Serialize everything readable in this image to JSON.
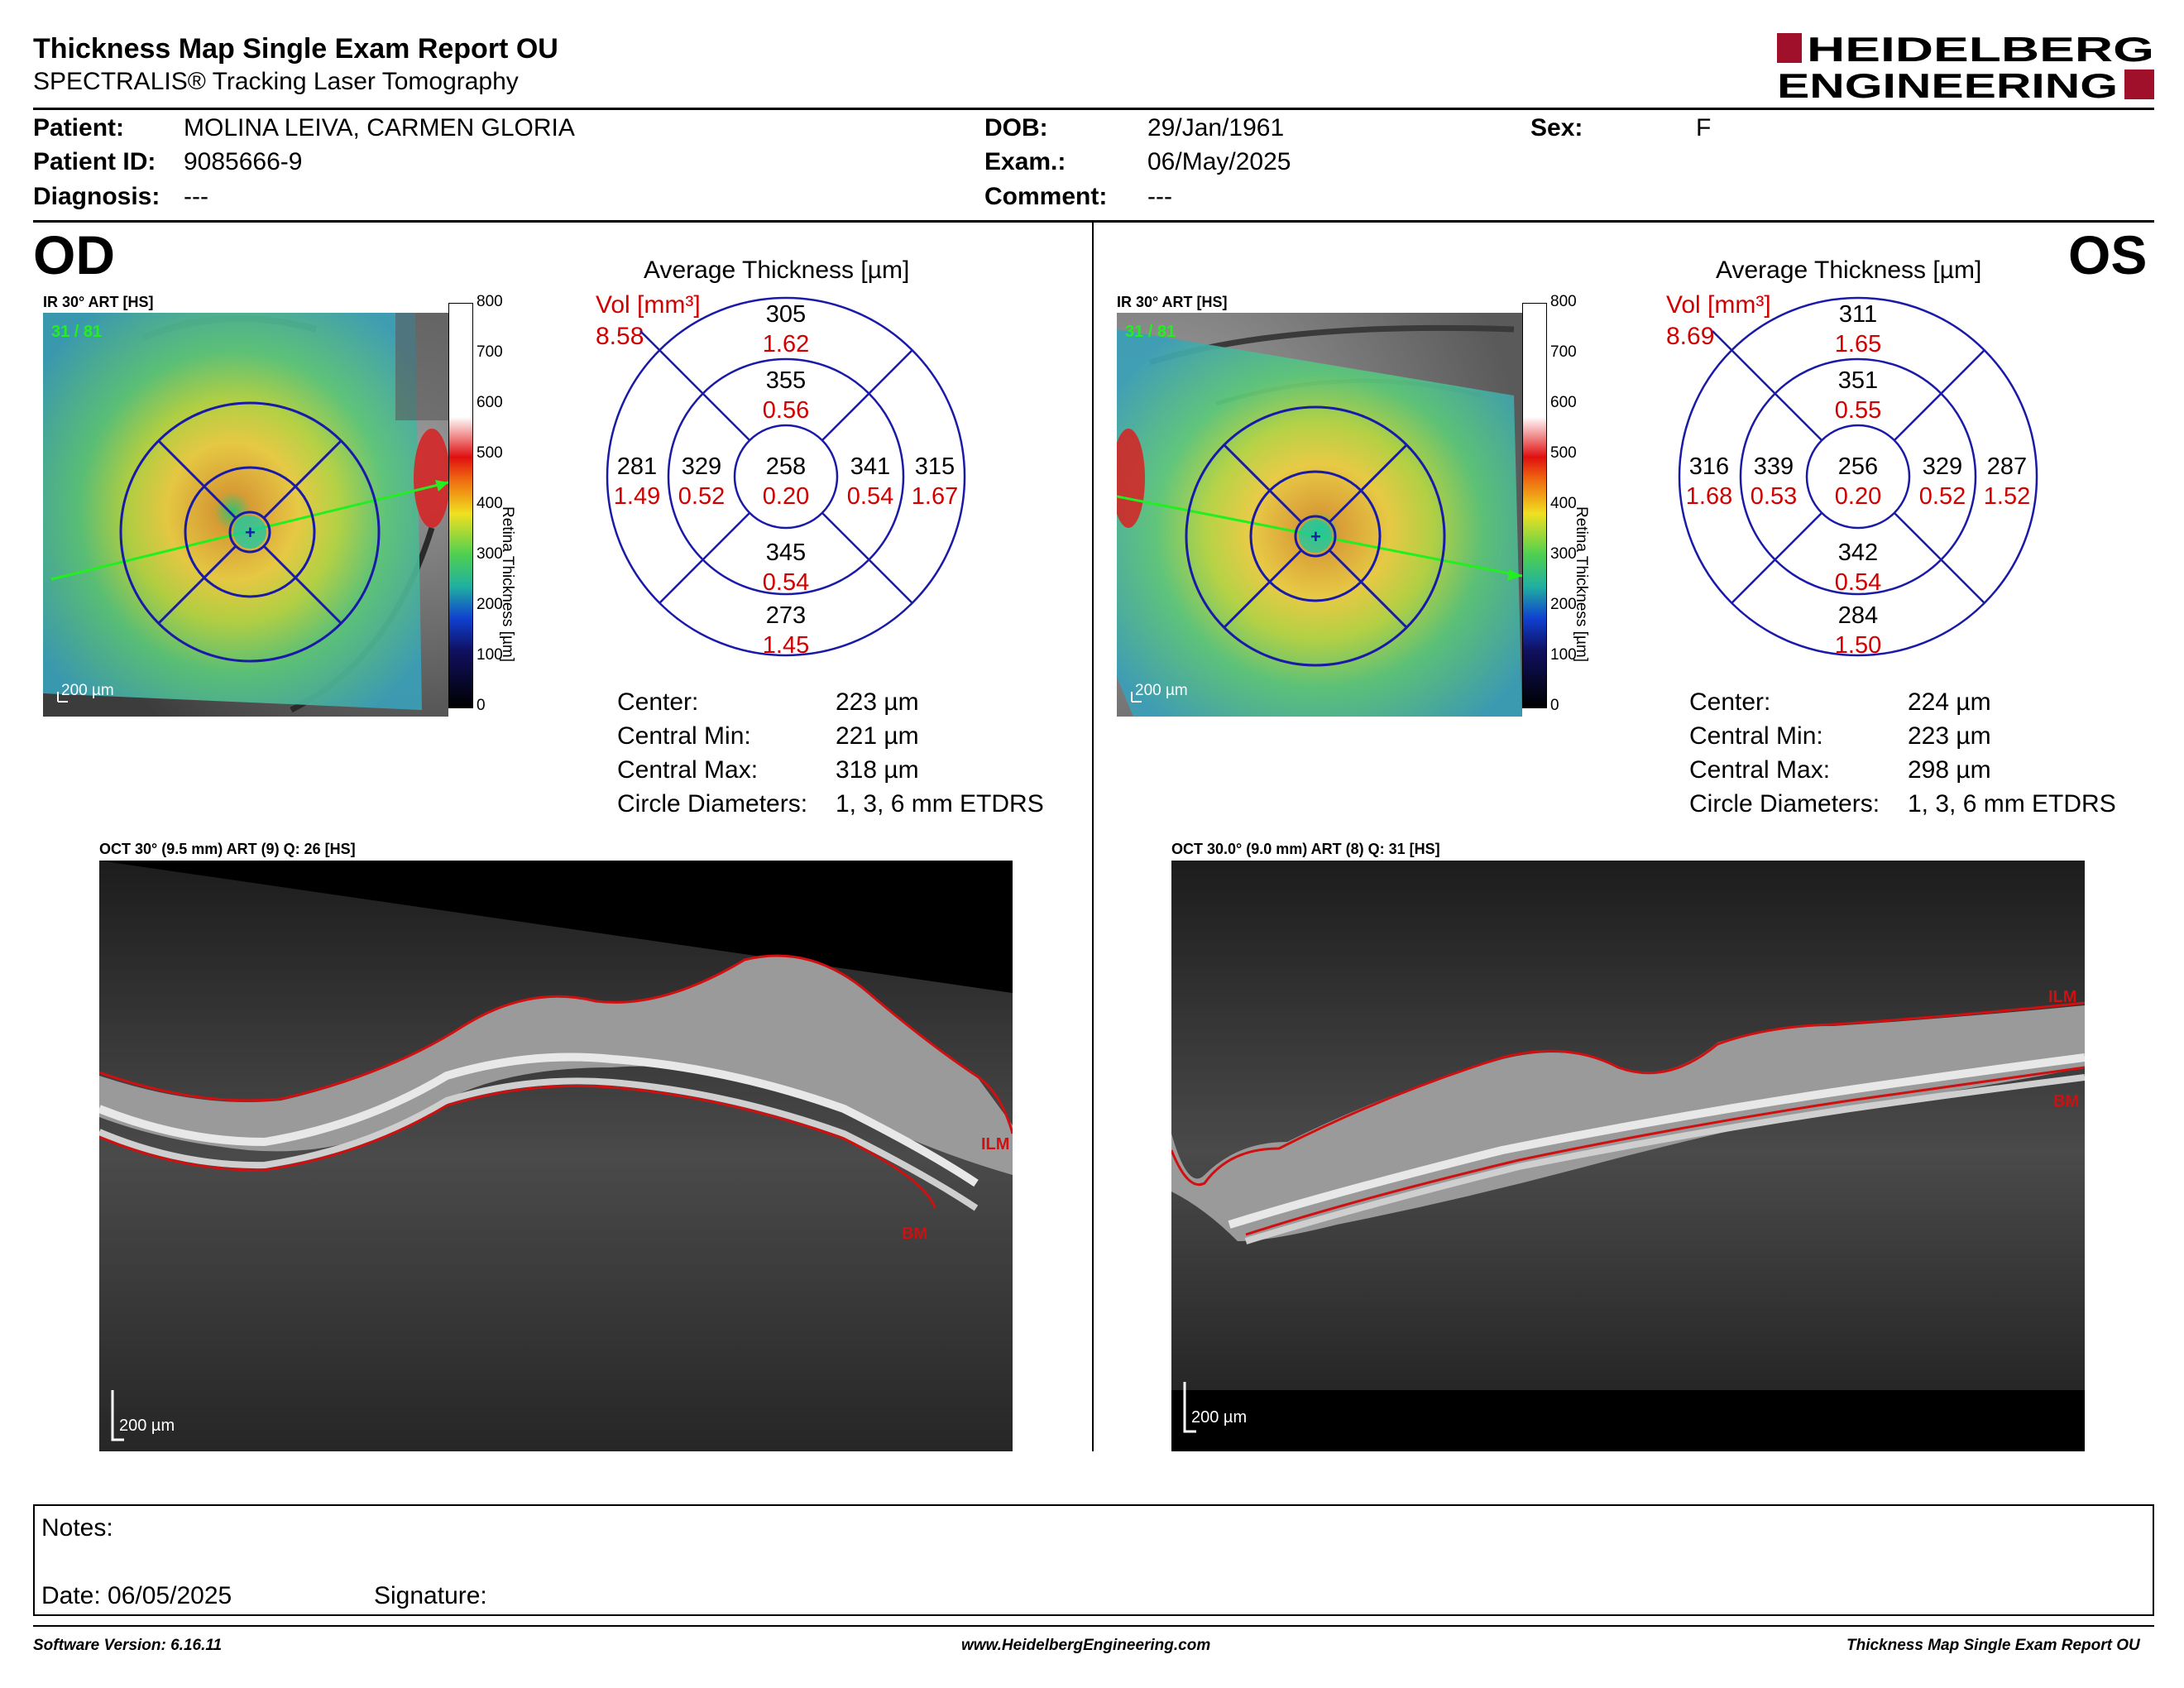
{
  "report": {
    "title": "Thickness Map Single Exam Report OU",
    "subtitle": "SPECTRALIS® Tracking Laser Tomography",
    "logo_line1": "HEIDELBERG",
    "logo_line2": "ENGINEERING"
  },
  "patient": {
    "patient_label": "Patient:",
    "patient_value": "MOLINA LEIVA, CARMEN GLORIA",
    "id_label": "Patient ID:",
    "id_value": "9085666-9",
    "diagnosis_label": "Diagnosis:",
    "diagnosis_value": "---",
    "dob_label": "DOB:",
    "dob_value": "29/Jan/1961",
    "exam_label": "Exam.:",
    "exam_value": "06/May/2025",
    "comment_label": "Comment:",
    "comment_value": "---",
    "sex_label": "Sex:",
    "sex_value": "F"
  },
  "colorbar": {
    "ticks": [
      "800",
      "700",
      "600",
      "500",
      "400",
      "300",
      "200",
      "100",
      "0"
    ],
    "title": "Retina Thickness [µm]"
  },
  "eyes": {
    "od": {
      "eye_label": "OD",
      "ir_label": "IR 30° ART [HS]",
      "frame_count": "31 / 81",
      "scale": "200 µm",
      "avg_title": "Average Thickness [µm]",
      "vol_label": "Vol [mm³]",
      "vol_value": "8.58",
      "sectors": {
        "outer_top": {
          "t": "305",
          "v": "1.62"
        },
        "inner_top": {
          "t": "355",
          "v": "0.56"
        },
        "center": {
          "t": "258",
          "v": "0.20"
        },
        "inner_bottom": {
          "t": "345",
          "v": "0.54"
        },
        "outer_bottom": {
          "t": "273",
          "v": "1.45"
        },
        "outer_left": {
          "t": "281",
          "v": "1.49"
        },
        "inner_left": {
          "t": "329",
          "v": "0.52"
        },
        "inner_right": {
          "t": "341",
          "v": "0.54"
        },
        "outer_right": {
          "t": "315",
          "v": "1.67"
        }
      },
      "stats": {
        "center_label": "Center:",
        "center_value": "223 µm",
        "min_label": "Central Min:",
        "min_value": "221 µm",
        "max_label": "Central Max:",
        "max_value": "318 µm",
        "diam_label": "Circle Diameters:",
        "diam_value": "1, 3, 6 mm ETDRS"
      },
      "oct_label": "OCT 30° (9.5 mm) ART (9) Q: 26 [HS]",
      "oct_scale": "200 µm",
      "ilm": "ILM",
      "bm": "BM"
    },
    "os": {
      "eye_label": "OS",
      "ir_label": "IR 30° ART [HS]",
      "frame_count": "31 / 81",
      "scale": "200 µm",
      "avg_title": "Average Thickness [µm]",
      "vol_label": "Vol [mm³]",
      "vol_value": "8.69",
      "sectors": {
        "outer_top": {
          "t": "311",
          "v": "1.65"
        },
        "inner_top": {
          "t": "351",
          "v": "0.55"
        },
        "center": {
          "t": "256",
          "v": "0.20"
        },
        "inner_bottom": {
          "t": "342",
          "v": "0.54"
        },
        "outer_bottom": {
          "t": "284",
          "v": "1.50"
        },
        "outer_left": {
          "t": "316",
          "v": "1.68"
        },
        "inner_left": {
          "t": "339",
          "v": "0.53"
        },
        "inner_right": {
          "t": "329",
          "v": "0.52"
        },
        "outer_right": {
          "t": "287",
          "v": "1.52"
        }
      },
      "stats": {
        "center_label": "Center:",
        "center_value": "224 µm",
        "min_label": "Central Min:",
        "min_value": "223 µm",
        "max_label": "Central Max:",
        "max_value": "298 µm",
        "diam_label": "Circle Diameters:",
        "diam_value": "1, 3, 6 mm ETDRS"
      },
      "oct_label": "OCT 30.0° (9.0 mm) ART (8) Q: 31 [HS]",
      "oct_scale": "200 µm",
      "ilm": "ILM",
      "bm": "BM"
    }
  },
  "notes": {
    "notes_label": "Notes:",
    "date_label": "Date: 06/05/2025",
    "signature_label": "Signature:"
  },
  "footer": {
    "software": "Software Version: 6.16.11",
    "website": "www.HeidelbergEngineering.com",
    "report": "Thickness Map Single Exam Report OU"
  },
  "colors": {
    "accent_red": "#d00000",
    "grid_blue": "#1a1aa8",
    "logo_red": "#a0102a"
  }
}
